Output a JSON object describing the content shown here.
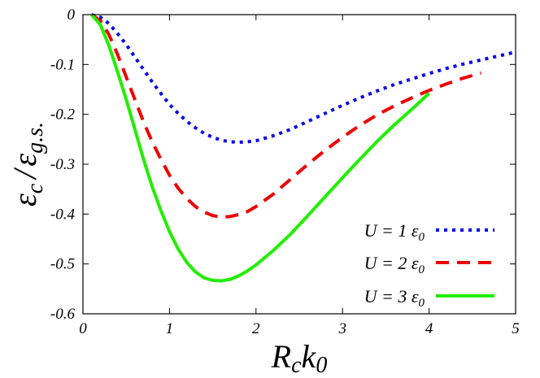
{
  "chart_data": {
    "type": "line",
    "xlabel": "R_c k_0",
    "xlabel_main": "R",
    "xlabel_sub": "c",
    "xlabel_k": "k",
    "xlabel_sub2": "0",
    "ylabel_num": "ε",
    "ylabel_num_sub": "c",
    "ylabel_slash": "/",
    "ylabel_den": "ε",
    "ylabel_den_sub": "g.s.",
    "xlim": [
      0,
      5
    ],
    "ylim": [
      -0.6,
      0
    ],
    "xticks": [
      "0",
      "1",
      "2",
      "3",
      "4",
      "5"
    ],
    "yticks": [
      "0",
      "-0.1",
      "-0.2",
      "-0.3",
      "-0.4",
      "-0.5",
      "-0.6"
    ],
    "legend_position": "bottom-right",
    "series": [
      {
        "name": "U = 1 ε0",
        "label_main": "U = 1 ε",
        "label_sub": "0",
        "color": "#0000ee",
        "dash": "dotted",
        "x": [
          0.1,
          0.2,
          0.3,
          0.4,
          0.5,
          0.6,
          0.7,
          0.8,
          0.9,
          1.0,
          1.1,
          1.2,
          1.3,
          1.4,
          1.5,
          1.6,
          1.7,
          1.8,
          1.9,
          2.0,
          2.2,
          2.4,
          2.6,
          2.8,
          3.0,
          3.2,
          3.4,
          3.6,
          3.8,
          4.0,
          4.2,
          4.4,
          4.6,
          4.8,
          5.0
        ],
        "y": [
          0.0,
          -0.005,
          -0.018,
          -0.038,
          -0.06,
          -0.085,
          -0.11,
          -0.135,
          -0.158,
          -0.18,
          -0.198,
          -0.214,
          -0.227,
          -0.238,
          -0.246,
          -0.252,
          -0.255,
          -0.256,
          -0.255,
          -0.253,
          -0.243,
          -0.23,
          -0.214,
          -0.198,
          -0.182,
          -0.167,
          -0.153,
          -0.14,
          -0.129,
          -0.118,
          -0.108,
          -0.099,
          -0.091,
          -0.083,
          -0.075
        ]
      },
      {
        "name": "U = 2 ε0",
        "label_main": "U = 2 ε",
        "label_sub": "0",
        "color": "#ee0000",
        "dash": "dashed",
        "x": [
          0.1,
          0.2,
          0.3,
          0.4,
          0.5,
          0.6,
          0.7,
          0.8,
          0.9,
          1.0,
          1.1,
          1.2,
          1.3,
          1.4,
          1.5,
          1.6,
          1.7,
          1.8,
          1.9,
          2.0,
          2.2,
          2.4,
          2.6,
          2.8,
          3.0,
          3.2,
          3.4,
          3.6,
          3.8,
          4.0,
          4.2,
          4.4,
          4.6
        ],
        "y": [
          0.0,
          -0.012,
          -0.04,
          -0.08,
          -0.125,
          -0.17,
          -0.215,
          -0.255,
          -0.29,
          -0.322,
          -0.348,
          -0.369,
          -0.385,
          -0.396,
          -0.403,
          -0.406,
          -0.405,
          -0.401,
          -0.395,
          -0.385,
          -0.36,
          -0.33,
          -0.3,
          -0.272,
          -0.246,
          -0.222,
          -0.201,
          -0.183,
          -0.167,
          -0.152,
          -0.139,
          -0.127,
          -0.117
        ]
      },
      {
        "name": "U = 3 ε0",
        "label_main": "U = 3 ε",
        "label_sub": "0",
        "color": "#22ee00",
        "dash": "solid",
        "x": [
          0.1,
          0.2,
          0.3,
          0.4,
          0.5,
          0.6,
          0.7,
          0.8,
          0.9,
          1.0,
          1.1,
          1.2,
          1.3,
          1.4,
          1.5,
          1.6,
          1.7,
          1.8,
          1.9,
          2.0,
          2.2,
          2.4,
          2.6,
          2.8,
          3.0,
          3.2,
          3.4,
          3.6,
          3.8,
          4.0
        ],
        "y": [
          0.0,
          -0.02,
          -0.062,
          -0.115,
          -0.17,
          -0.23,
          -0.29,
          -0.345,
          -0.393,
          -0.435,
          -0.47,
          -0.497,
          -0.516,
          -0.528,
          -0.533,
          -0.534,
          -0.531,
          -0.524,
          -0.514,
          -0.502,
          -0.473,
          -0.44,
          -0.403,
          -0.365,
          -0.327,
          -0.29,
          -0.254,
          -0.221,
          -0.19,
          -0.158
        ]
      }
    ]
  }
}
